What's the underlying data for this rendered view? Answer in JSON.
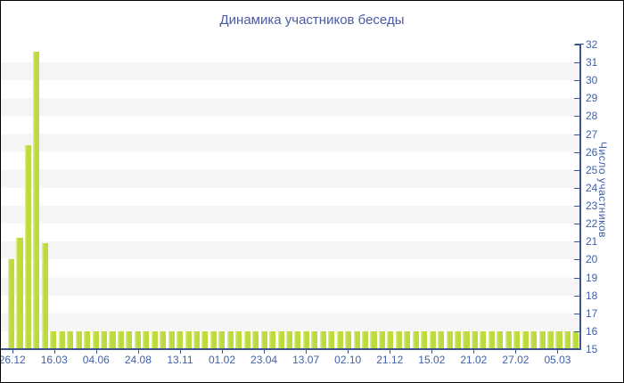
{
  "window": {
    "background": "#ffffff",
    "frame_border_color": "#000000"
  },
  "chart_data": {
    "type": "bar",
    "title": "Динамика участников беседы",
    "xlabel": "",
    "ylabel": "Число участников",
    "y_axis_side": "right",
    "ylim": [
      15,
      32
    ],
    "y_tick_step": 1,
    "grid": "alternating horizontal bands, no gridlines",
    "legend_position": "none",
    "x_tick_labels": [
      "26.12",
      "16.03",
      "04.06",
      "24.08",
      "13.11",
      "01.02",
      "23.04",
      "13.07",
      "02.10",
      "21.12",
      "15.02",
      "21.02",
      "27.02",
      "05.03"
    ],
    "x_ticks_every_n_bars": 5,
    "values": [
      20,
      21.2,
      26.4,
      31.6,
      20.9,
      16,
      16,
      16,
      16,
      16,
      16,
      16,
      16,
      16,
      16,
      16,
      16,
      16,
      16,
      16,
      16,
      16,
      16,
      16,
      16,
      16,
      16,
      16,
      16,
      16,
      16,
      16,
      16,
      16,
      16,
      16,
      16,
      16,
      16,
      16,
      16,
      16,
      16,
      16,
      16,
      16,
      16,
      16,
      16,
      16,
      16,
      16,
      16,
      16,
      16,
      16,
      16,
      16,
      16,
      16,
      16,
      16,
      16,
      16,
      16,
      16,
      16,
      16
    ],
    "bar_color": "#bdda3e",
    "bar_highlight_color": "#d9e985",
    "stripe_color": "#f5f5f6",
    "axis_color": "#3a5590",
    "tick_label_color": "#4160a8",
    "title_color": "#4a5aa5"
  }
}
